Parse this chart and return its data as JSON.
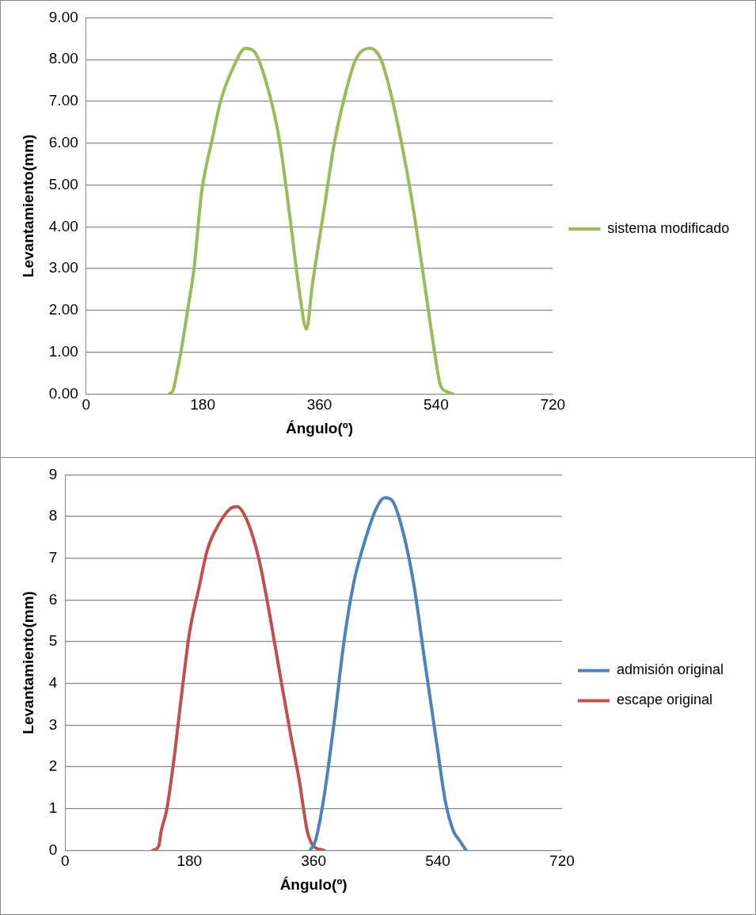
{
  "chart_data": [
    {
      "type": "line",
      "xlabel": "Ángulo(º)",
      "ylabel": "Levantamiento(mm)",
      "xlim": [
        0,
        720
      ],
      "xticks": [
        0,
        180,
        360,
        540,
        720
      ],
      "ylim": [
        0,
        9
      ],
      "yticks": [
        {
          "value": 0,
          "label": "0.00"
        },
        {
          "value": 1,
          "label": "1.00"
        },
        {
          "value": 2,
          "label": "2.00"
        },
        {
          "value": 3,
          "label": "3.00"
        },
        {
          "value": 4,
          "label": "4.00"
        },
        {
          "value": 5,
          "label": "5.00"
        },
        {
          "value": 6,
          "label": "6.00"
        },
        {
          "value": 7,
          "label": "7.00"
        },
        {
          "value": 8,
          "label": "8.00"
        },
        {
          "value": 9,
          "label": "9.00"
        }
      ],
      "grid": "y",
      "legend": "right",
      "marker": "none",
      "series": [
        {
          "name": "sistema modificado",
          "color": "#9bbb59",
          "x": [
            128,
            134.5,
            139.6,
            147,
            157.6,
            166.5,
            178,
            194.7,
            207.5,
            226.7,
            246,
            259,
            278,
            298,
            316,
            330,
            340,
            349,
            368,
            383,
            397,
            416,
            438,
            455,
            476,
            502,
            524,
            537,
            547,
            558,
            566
          ],
          "values": [
            0,
            0.1,
            0.47,
            1.07,
            2.1,
            3.0,
            4.8,
            6.1,
            7.0,
            7.8,
            8.27,
            8.2,
            7.45,
            6.1,
            4.05,
            2.35,
            1.55,
            2.6,
            4.5,
            6.0,
            7.0,
            8.0,
            8.27,
            8.0,
            6.8,
            4.7,
            2.45,
            1.07,
            0.2,
            0.05,
            0
          ]
        }
      ]
    },
    {
      "type": "line",
      "xlabel": "Ángulo(º)",
      "ylabel": "Levantamiento(mm)",
      "xlim": [
        0,
        720
      ],
      "xticks": [
        0,
        180,
        360,
        540,
        720
      ],
      "ylim": [
        0,
        9
      ],
      "yticks": [
        0,
        1,
        2,
        3,
        4,
        5,
        6,
        7,
        8,
        9
      ],
      "grid": "y",
      "legend": "right",
      "marker": "none",
      "series": [
        {
          "name": "admisión original",
          "color": "#4f81bd",
          "x": [
            355,
            363,
            375,
            390,
            404,
            418,
            434,
            451,
            463,
            473,
            487,
            505,
            521,
            539,
            551,
            563,
            571,
            581
          ],
          "values": [
            0,
            0.25,
            1.27,
            3.1,
            5.0,
            6.4,
            7.4,
            8.2,
            8.45,
            8.4,
            7.8,
            6.4,
            4.55,
            2.5,
            1.17,
            0.45,
            0.25,
            0
          ]
        },
        {
          "name": "escape original",
          "color": "#c0504d",
          "x": [
            127,
            135.5,
            139,
            147,
            157,
            168.5,
            180,
            194,
            206,
            222,
            240,
            249,
            263,
            280.5,
            298,
            312,
            327.5,
            339,
            351,
            360,
            375
          ],
          "values": [
            0,
            0.1,
            0.45,
            0.96,
            2.1,
            3.7,
            5.2,
            6.3,
            7.2,
            7.8,
            8.2,
            8.24,
            7.93,
            7.0,
            5.5,
            4.15,
            2.7,
            1.7,
            0.45,
            0.1,
            0
          ]
        }
      ]
    }
  ]
}
